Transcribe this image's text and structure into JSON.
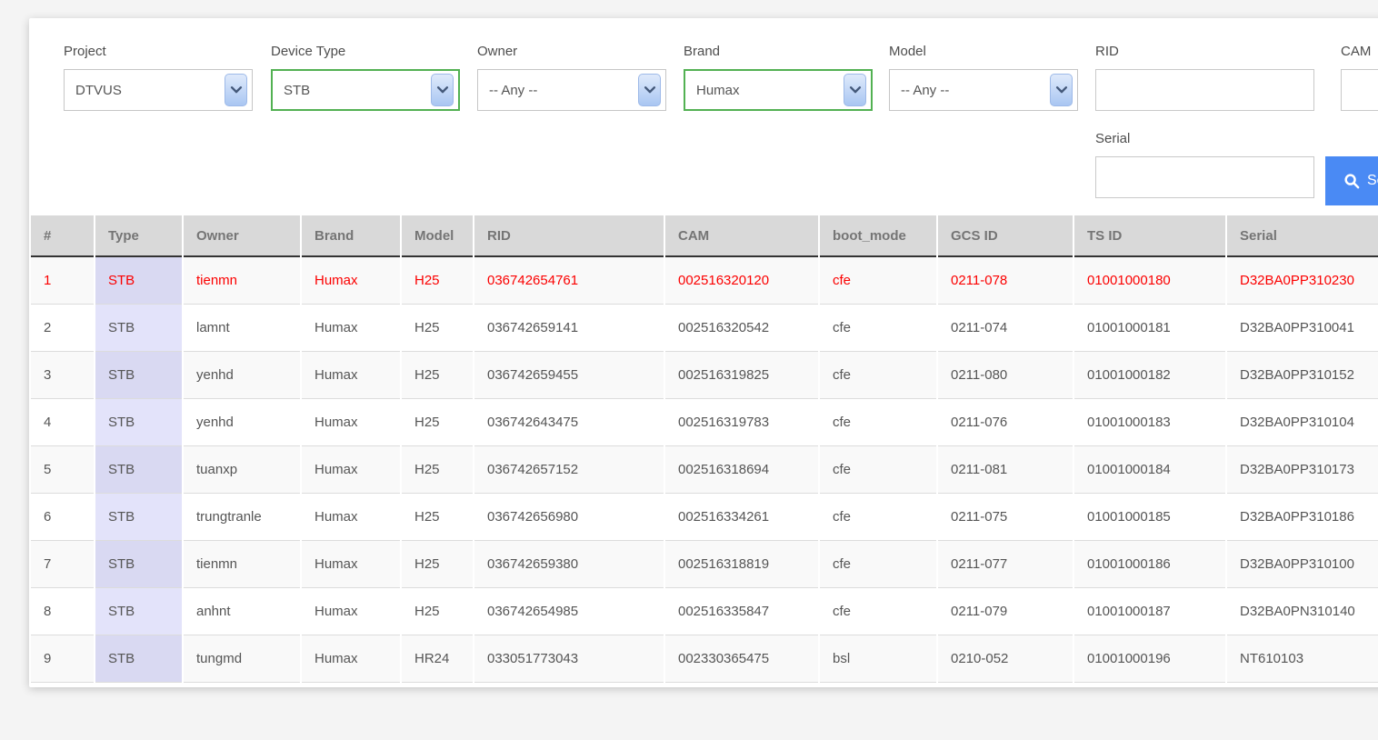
{
  "filters": {
    "project": {
      "label": "Project",
      "value": "DTVUS"
    },
    "device_type": {
      "label": "Device Type",
      "value": "STB"
    },
    "owner": {
      "label": "Owner",
      "value": "-- Any --"
    },
    "brand": {
      "label": "Brand",
      "value": "Humax"
    },
    "model": {
      "label": "Model",
      "value": "-- Any --"
    },
    "rid": {
      "label": "RID",
      "value": "",
      "placeholder": ""
    },
    "cam": {
      "label": "CAM",
      "value": "",
      "placeholder": ""
    },
    "serial": {
      "label": "Serial",
      "value": "",
      "placeholder": ""
    }
  },
  "search_button": {
    "label": "Search"
  },
  "colors": {
    "accent_blue": "#4a8af4",
    "active_filter_green": "#52b152",
    "highlight_row_red": "#fb0000",
    "type_column_lavender": "#e3e3fa",
    "header_gray": "#d9d9d9"
  },
  "table": {
    "headers": [
      "#",
      "Type",
      "Owner",
      "Brand",
      "Model",
      "RID",
      "CAM",
      "boot_mode",
      "GCS ID",
      "TS ID",
      "Serial"
    ],
    "red_rows": [
      1
    ],
    "rows": [
      [
        "1",
        "STB",
        "tienmn",
        "Humax",
        "H25",
        "036742654761",
        "002516320120",
        "cfe",
        "0211-078",
        "01001000180",
        "D32BA0PP310230"
      ],
      [
        "2",
        "STB",
        "lamnt",
        "Humax",
        "H25",
        "036742659141",
        "002516320542",
        "cfe",
        "0211-074",
        "01001000181",
        "D32BA0PP310041"
      ],
      [
        "3",
        "STB",
        "yenhd",
        "Humax",
        "H25",
        "036742659455",
        "002516319825",
        "cfe",
        "0211-080",
        "01001000182",
        "D32BA0PP310152"
      ],
      [
        "4",
        "STB",
        "yenhd",
        "Humax",
        "H25",
        "036742643475",
        "002516319783",
        "cfe",
        "0211-076",
        "01001000183",
        "D32BA0PP310104"
      ],
      [
        "5",
        "STB",
        "tuanxp",
        "Humax",
        "H25",
        "036742657152",
        "002516318694",
        "cfe",
        "0211-081",
        "01001000184",
        "D32BA0PP310173"
      ],
      [
        "6",
        "STB",
        "trungtranle",
        "Humax",
        "H25",
        "036742656980",
        "002516334261",
        "cfe",
        "0211-075",
        "01001000185",
        "D32BA0PP310186"
      ],
      [
        "7",
        "STB",
        "tienmn",
        "Humax",
        "H25",
        "036742659380",
        "002516318819",
        "cfe",
        "0211-077",
        "01001000186",
        "D32BA0PP310100"
      ],
      [
        "8",
        "STB",
        "anhnt",
        "Humax",
        "H25",
        "036742654985",
        "002516335847",
        "cfe",
        "0211-079",
        "01001000187",
        "D32BA0PN310140"
      ],
      [
        "9",
        "STB",
        "tungmd",
        "Humax",
        "HR24",
        "033051773043",
        "002330365475",
        "bsl",
        "0210-052",
        "01001000196",
        "NT610103"
      ]
    ]
  }
}
